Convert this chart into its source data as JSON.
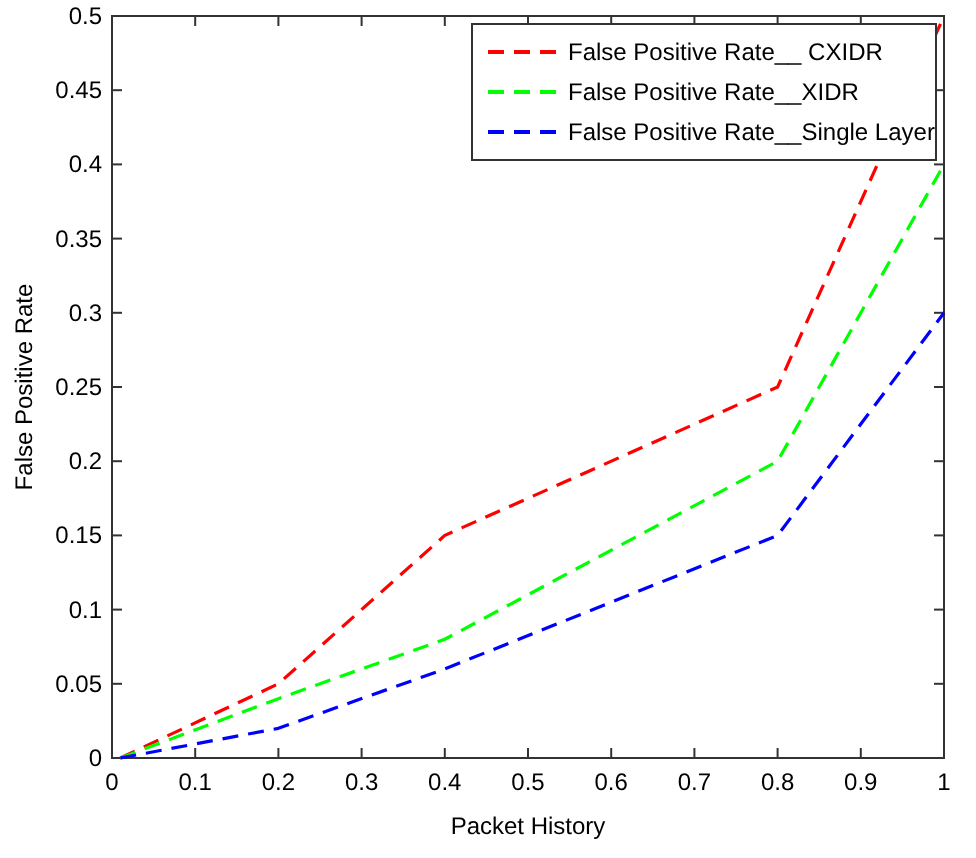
{
  "chart_data": {
    "type": "line",
    "xlabel": "Packet History",
    "ylabel": "False Positive Rate",
    "xlim": [
      0,
      1
    ],
    "ylim": [
      0,
      0.5
    ],
    "xticks": [
      0,
      0.1,
      0.2,
      0.3,
      0.4,
      0.5,
      0.6,
      0.7,
      0.8,
      0.9,
      1
    ],
    "yticks": [
      0,
      0.05,
      0.1,
      0.15,
      0.2,
      0.25,
      0.3,
      0.35,
      0.4,
      0.45,
      0.5
    ],
    "x": [
      0.01,
      0.2,
      0.4,
      0.8,
      1
    ],
    "line_style": "dashed",
    "marker": "none",
    "grid": false,
    "legend": "top right",
    "series": [
      {
        "name": "False Positive Rate__ CXIDR",
        "color": "#ff0000",
        "values": [
          0,
          0.05,
          0.15,
          0.25,
          0.5
        ]
      },
      {
        "name": "False Positive Rate__XIDR",
        "color": "#00ff00",
        "values": [
          0,
          0.04,
          0.08,
          0.2,
          0.4
        ]
      },
      {
        "name": "False Positive Rate__Single Layer",
        "color": "#0000ff",
        "values": [
          0,
          0.02,
          0.06,
          0.15,
          0.3
        ]
      }
    ]
  }
}
